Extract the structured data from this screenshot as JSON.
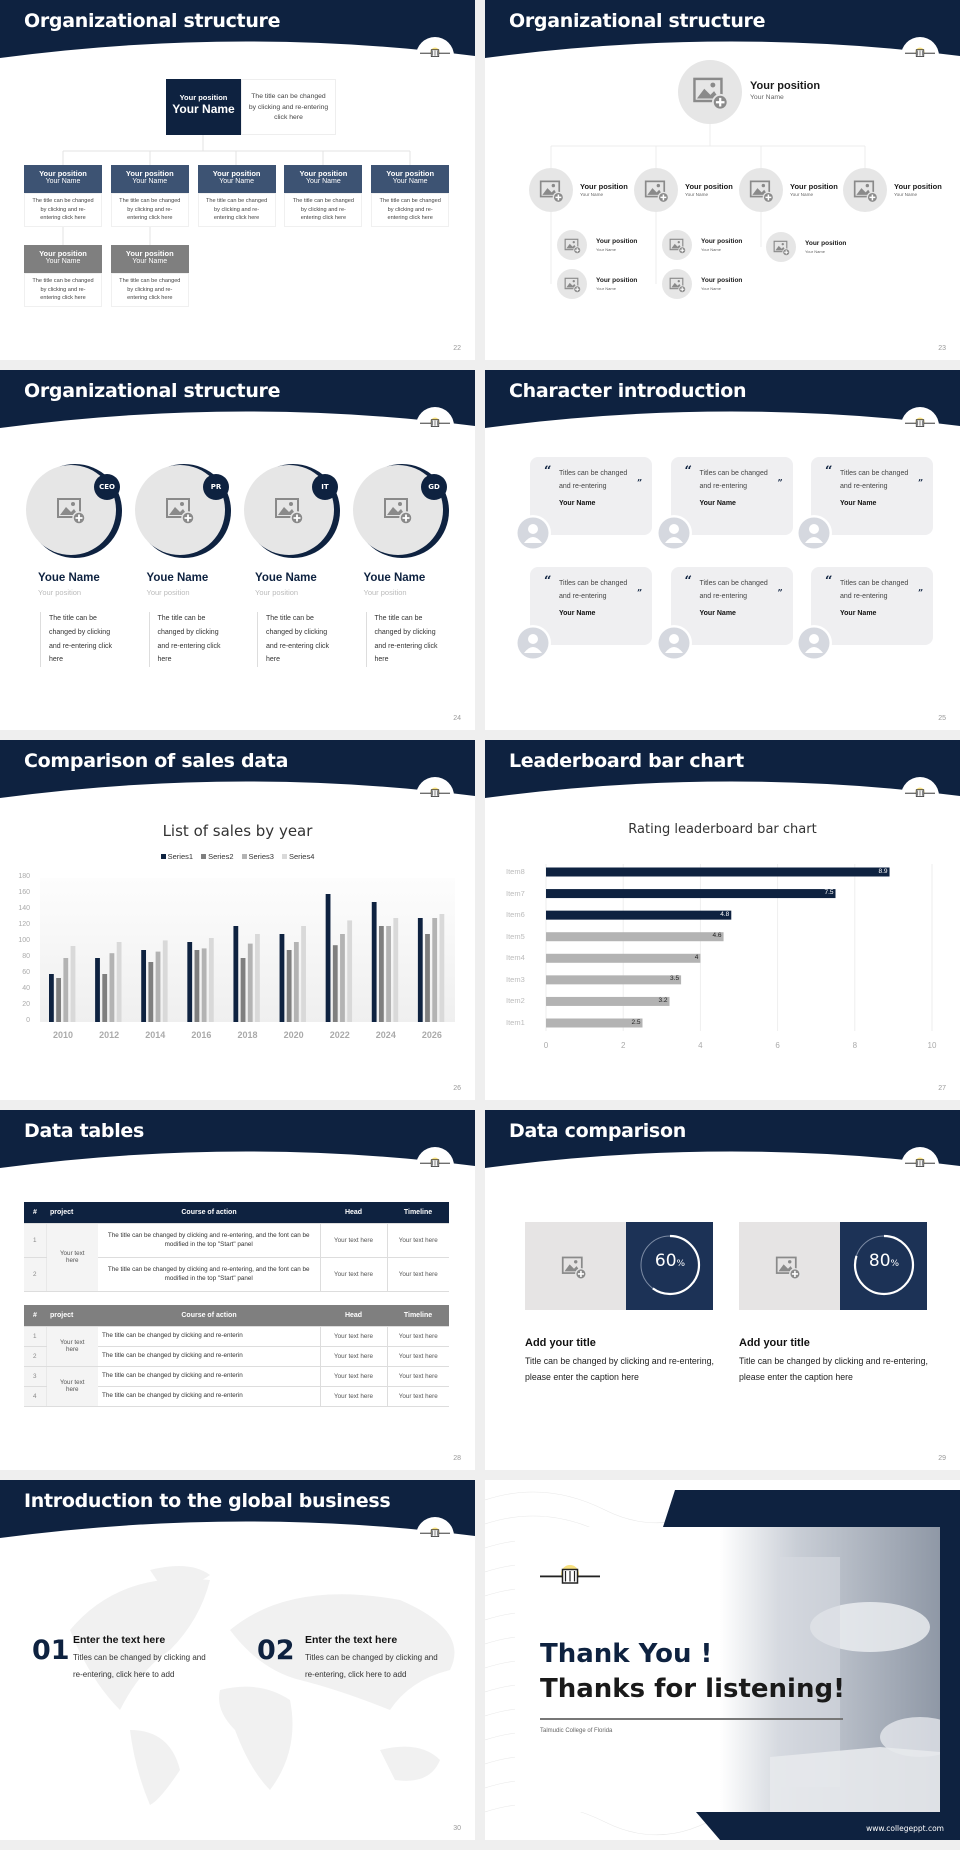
{
  "colors": {
    "navy": "#0e2240",
    "slate": "#3d5373",
    "grey": "#7f7f7f",
    "light": "#e6e6e6"
  },
  "s22": {
    "title": "Organizational structure",
    "page": "22",
    "top": {
      "position": "Your position",
      "name": "Your Name",
      "desc": "The title can be changed by clicking and re-entering click here"
    },
    "nodes": [
      {
        "position": "Your position",
        "name": "Your Name",
        "desc": "The title can be changed by clicking and re-entering click here"
      },
      {
        "position": "Your position",
        "name": "Your Name",
        "desc": "The title can be changed by clicking and re-entering click here"
      },
      {
        "position": "Your position",
        "name": "Your Name",
        "desc": "The title can be changed by clicking and re-entering click here"
      },
      {
        "position": "Your position",
        "name": "Your Name",
        "desc": "The title can be changed by clicking and re-entering click here"
      },
      {
        "position": "Your position",
        "name": "Your Name",
        "desc": "The title can be changed by clicking and re-entering click here"
      },
      {
        "position": "Your position",
        "name": "Your Name",
        "desc": "The title can be changed by clicking and re-entering click here"
      },
      {
        "position": "Your position",
        "name": "Your Name",
        "desc": "The title can be changed by clicking and re-entering click here"
      }
    ]
  },
  "s23": {
    "title": "Organizational structure",
    "page": "23",
    "top": {
      "position": "Your position",
      "name": "Your Name"
    },
    "mid": [
      {
        "position": "Your position",
        "name": "Your Name"
      },
      {
        "position": "Your position",
        "name": "Your Name"
      },
      {
        "position": "Your position",
        "name": "Your Name"
      },
      {
        "position": "Your position",
        "name": "Your Name"
      }
    ],
    "sub": [
      {
        "position": "Your position",
        "name": "Your Name"
      },
      {
        "position": "Your position",
        "name": "Your Name"
      },
      {
        "position": "Your position",
        "name": "Your Name"
      },
      {
        "position": "Your position",
        "name": "Your Name"
      },
      {
        "position": "Your position",
        "name": "Your Name"
      }
    ]
  },
  "s24": {
    "title": "Organizational structure",
    "page": "24",
    "members": [
      {
        "badge": "CEO",
        "name": "Youe Name",
        "position": "Your position",
        "desc": "The title can be changed by clicking and re-entering click here"
      },
      {
        "badge": "PR",
        "name": "Youe Name",
        "position": "Your position",
        "desc": "The title can be changed by clicking and re-entering click here"
      },
      {
        "badge": "IT",
        "name": "Youe Name",
        "position": "Your position",
        "desc": "The title can be changed by clicking and re-entering click here"
      },
      {
        "badge": "GD",
        "name": "Youe Name",
        "position": "Your position",
        "desc": "The title can be changed by clicking and re-entering click here"
      }
    ]
  },
  "s25": {
    "title": "Character introduction",
    "page": "25",
    "cards": [
      {
        "quote": "Titles can be changed and re-entering",
        "name": "Your Name"
      },
      {
        "quote": "Titles can be changed and re-entering",
        "name": "Your Name"
      },
      {
        "quote": "Titles can be changed and re-entering",
        "name": "Your Name"
      },
      {
        "quote": "Titles can be changed and re-entering",
        "name": "Your Name"
      },
      {
        "quote": "Titles can be changed and re-entering",
        "name": "Your Name"
      },
      {
        "quote": "Titles can be changed and re-entering",
        "name": "Your Name"
      }
    ]
  },
  "s26": {
    "title": "Comparison of sales data",
    "page": "26"
  },
  "s27": {
    "title": "Leaderboard bar chart",
    "page": "27"
  },
  "chart_data": [
    {
      "type": "bar",
      "title": "List of sales by year",
      "xlabel": "",
      "ylabel": "",
      "categories": [
        "2010",
        "2012",
        "2014",
        "2016",
        "2018",
        "2020",
        "2022",
        "2024",
        "2026"
      ],
      "series": [
        {
          "name": "Series1",
          "color": "#0e2240",
          "values": [
            60,
            80,
            90,
            100,
            120,
            110,
            160,
            150,
            130
          ]
        },
        {
          "name": "Series2",
          "color": "#7f7f7f",
          "values": [
            55,
            60,
            75,
            90,
            80,
            90,
            96,
            120,
            110
          ]
        },
        {
          "name": "Series3",
          "color": "#b3b3b3",
          "values": [
            80,
            86,
            88,
            92,
            98,
            100,
            110,
            120,
            130
          ]
        },
        {
          "name": "Series4",
          "color": "#d9d9d9",
          "values": [
            95,
            100,
            102,
            105,
            110,
            120,
            127,
            130,
            135
          ]
        }
      ],
      "ylim": [
        0,
        180
      ],
      "yticks": [
        0,
        20,
        40,
        60,
        80,
        100,
        120,
        140,
        160,
        180
      ],
      "legend": "top",
      "grid": false
    },
    {
      "type": "bar",
      "orientation": "horizontal",
      "title": "Rating leaderboard bar chart",
      "categories": [
        "Item1",
        "Item2",
        "Item3",
        "Item4",
        "Item5",
        "Item6",
        "Item7",
        "Item8"
      ],
      "values": [
        2.5,
        3.2,
        3.5,
        4,
        4.6,
        4.8,
        7.5,
        8.9
      ],
      "colors": [
        "#b3b3b3",
        "#b3b3b3",
        "#b3b3b3",
        "#b3b3b3",
        "#b3b3b3",
        "#0e2240",
        "#0e2240",
        "#0e2240"
      ],
      "xlim": [
        0,
        10
      ],
      "xticks": [
        0,
        2,
        4,
        6,
        8,
        10
      ],
      "grid": true,
      "data_labels": true
    }
  ],
  "s28": {
    "title": "Data tables",
    "page": "28",
    "headers": [
      "#",
      "project",
      "Course of action",
      "Head",
      "Timeline"
    ],
    "table1": {
      "project": "Your text here",
      "rows": [
        {
          "n": "1",
          "action": "The title can be changed by clicking and re-entering, and the font can be modified in the top \"Start\" panel",
          "head": "Your text here",
          "timeline": "Your text here"
        },
        {
          "n": "2",
          "action": "The title can be changed by clicking and re-entering, and the font can be modified in the top \"Start\" panel",
          "head": "Your text here",
          "timeline": "Your text here"
        }
      ]
    },
    "table2": {
      "projects": [
        "Your text here",
        "Your text here"
      ],
      "rows": [
        {
          "n": "1",
          "action": "The title can be changed by clicking and re-enterin",
          "head": "Your text here",
          "timeline": "Your text here"
        },
        {
          "n": "2",
          "action": "The title can be changed by clicking and re-enterin",
          "head": "Your text here",
          "timeline": "Your text here"
        },
        {
          "n": "3",
          "action": "The title can be changed by clicking and re-enterin",
          "head": "Your text here",
          "timeline": "Your text here"
        },
        {
          "n": "4",
          "action": "The title can be changed by clicking and re-enterin",
          "head": "Your text here",
          "timeline": "Your text here"
        }
      ]
    }
  },
  "s29": {
    "title": "Data comparison",
    "page": "29",
    "items": [
      {
        "percent": 60,
        "value": "60",
        "unit": "%",
        "heading": "Add your title",
        "text": "Title can be changed by clicking and re-entering, please enter the caption here"
      },
      {
        "percent": 80,
        "value": "80",
        "unit": "%",
        "heading": "Add your title",
        "text": "Title can be changed by clicking and re-entering, please enter the caption here"
      }
    ]
  },
  "s30": {
    "title": "Introduction to the global business",
    "page": "30",
    "items": [
      {
        "num": "01",
        "heading": "Enter the text here",
        "text": "Titles can be changed by clicking and re-entering, click here to add"
      },
      {
        "num": "02",
        "heading": "Enter the text here",
        "text": "Titles can be changed by clicking and re-entering, click here to add"
      }
    ]
  },
  "s31": {
    "line1": "Thank You !",
    "line2": "Thanks for listening!",
    "college": "Talmudic College of Florida",
    "website": "www.collegeppt.com"
  }
}
